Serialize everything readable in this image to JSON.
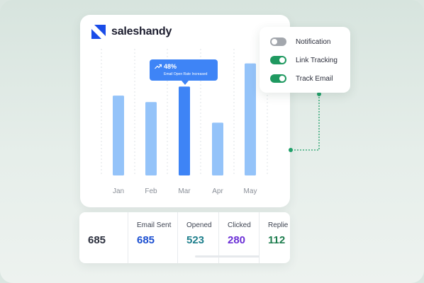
{
  "brand": {
    "name": "saleshandy",
    "color": "#1a4ce8"
  },
  "chart_data": {
    "type": "bar",
    "categories": [
      "Jan",
      "Feb",
      "Mar",
      "Apr",
      "May"
    ],
    "values": [
      62,
      57,
      69,
      41,
      87
    ],
    "ylim": [
      0,
      100
    ],
    "highlight_index": 2,
    "colors": {
      "bar": "#94c3f9",
      "highlight": "#3e84f6"
    },
    "grid": "vertical dashed"
  },
  "tooltip": {
    "value": "48%",
    "caption": "Email Open Rate Increased",
    "icon": "trending-up-icon"
  },
  "settings": [
    {
      "label": "Notification",
      "enabled": false
    },
    {
      "label": "Link Tracking",
      "enabled": true
    },
    {
      "label": "Track Email",
      "enabled": true
    }
  ],
  "stats": {
    "total": "685",
    "items": [
      {
        "label": "Email Sent",
        "value": "685",
        "color": "#1b4fd1"
      },
      {
        "label": "Opened",
        "value": "523",
        "color": "#1f7f8c"
      },
      {
        "label": "Clicked",
        "value": "280",
        "color": "#6b2fd6"
      },
      {
        "label": "Replie",
        "value": "112",
        "color": "#1e7d4e"
      }
    ]
  },
  "colors": {
    "accent": "#1f9960",
    "connector": "#21a06a"
  }
}
